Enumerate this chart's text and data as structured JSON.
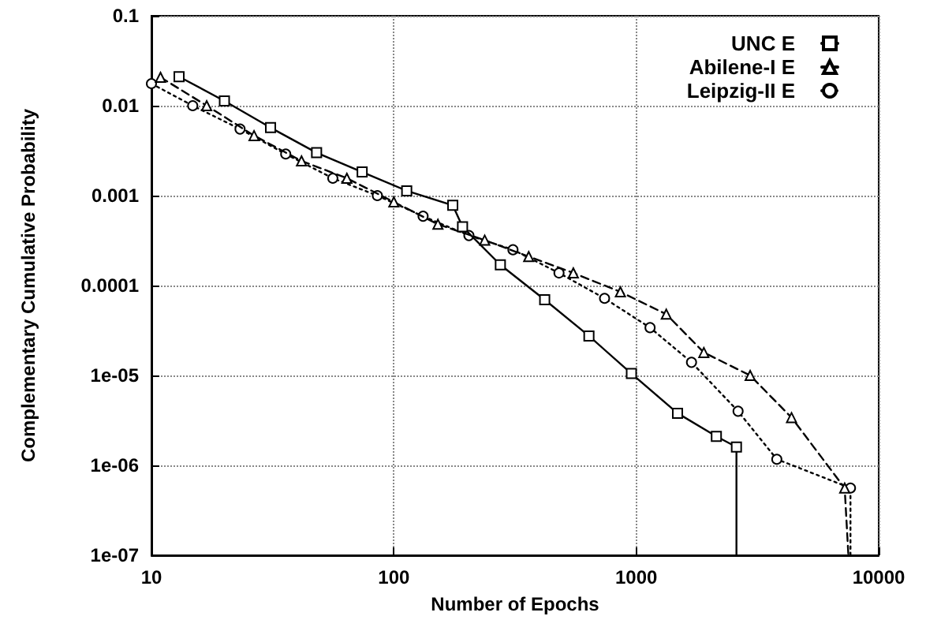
{
  "chart_data": {
    "type": "line",
    "xlabel": "Number of Epochs",
    "ylabel": "Complementary Cumulative Probability",
    "log": "xy",
    "grid": true,
    "legend": "top right",
    "xlim": [
      10,
      10000
    ],
    "xticks": [
      10,
      100,
      1000,
      10000
    ],
    "ylim": [
      1e-07,
      0.1
    ],
    "yticks": [
      {
        "value": 0.1,
        "label": "0.1"
      },
      {
        "value": 0.01,
        "label": "0.01"
      },
      {
        "value": 0.001,
        "label": "0.001"
      },
      {
        "value": 0.0001,
        "label": "0.0001"
      },
      {
        "value": 1e-05,
        "label": "1e-05"
      },
      {
        "value": 1e-06,
        "label": "1e-06"
      },
      {
        "value": 1e-07,
        "label": "1e-07"
      }
    ],
    "series": [
      {
        "name": "UNC E",
        "color": "#000000",
        "marker": "square",
        "line_style": "solid",
        "x": [
          13,
          20,
          31,
          48,
          74,
          113,
          175,
          192,
          275,
          419,
          638,
          955,
          1480,
          2140,
          2590,
          2590
        ],
        "values": [
          0.021,
          0.0113,
          0.0057,
          0.003,
          0.00183,
          0.00113,
          0.00078,
          0.00045,
          0.00017,
          6.95e-05,
          2.75e-05,
          1.05e-05,
          3.8e-06,
          2.1e-06,
          1.6e-06,
          1e-07
        ]
      },
      {
        "name": "Abilene-I E",
        "color": "#000000",
        "marker": "triangle",
        "line_style": "dashed",
        "x": [
          10.9,
          16.9,
          26.5,
          41.6,
          64,
          100,
          152,
          237,
          360,
          550,
          860,
          1330,
          1900,
          2950,
          4370,
          7240,
          7500
        ],
        "values": [
          0.0207,
          0.01,
          0.00465,
          0.00243,
          0.00156,
          0.00085,
          0.00048,
          0.00032,
          0.00021,
          0.000138,
          8.5e-05,
          4.8e-05,
          1.8e-05,
          1e-05,
          3.4e-06,
          5.6e-07,
          1e-07
        ]
      },
      {
        "name": "Leipzig-II E",
        "color": "#000000",
        "marker": "circle",
        "line_style": "dotted",
        "x": [
          10,
          14.8,
          23.2,
          35.8,
          56,
          85.5,
          132,
          204,
          310,
          480,
          740,
          1140,
          1690,
          2630,
          3800,
          7650,
          7650
        ],
        "values": [
          0.0176,
          0.01,
          0.0055,
          0.0029,
          0.00156,
          0.001,
          0.00059,
          0.00036,
          0.00025,
          0.000138,
          7.2e-05,
          3.4e-05,
          1.4e-05,
          4e-06,
          1.17e-06,
          5.6e-07,
          1e-07
        ]
      }
    ]
  }
}
